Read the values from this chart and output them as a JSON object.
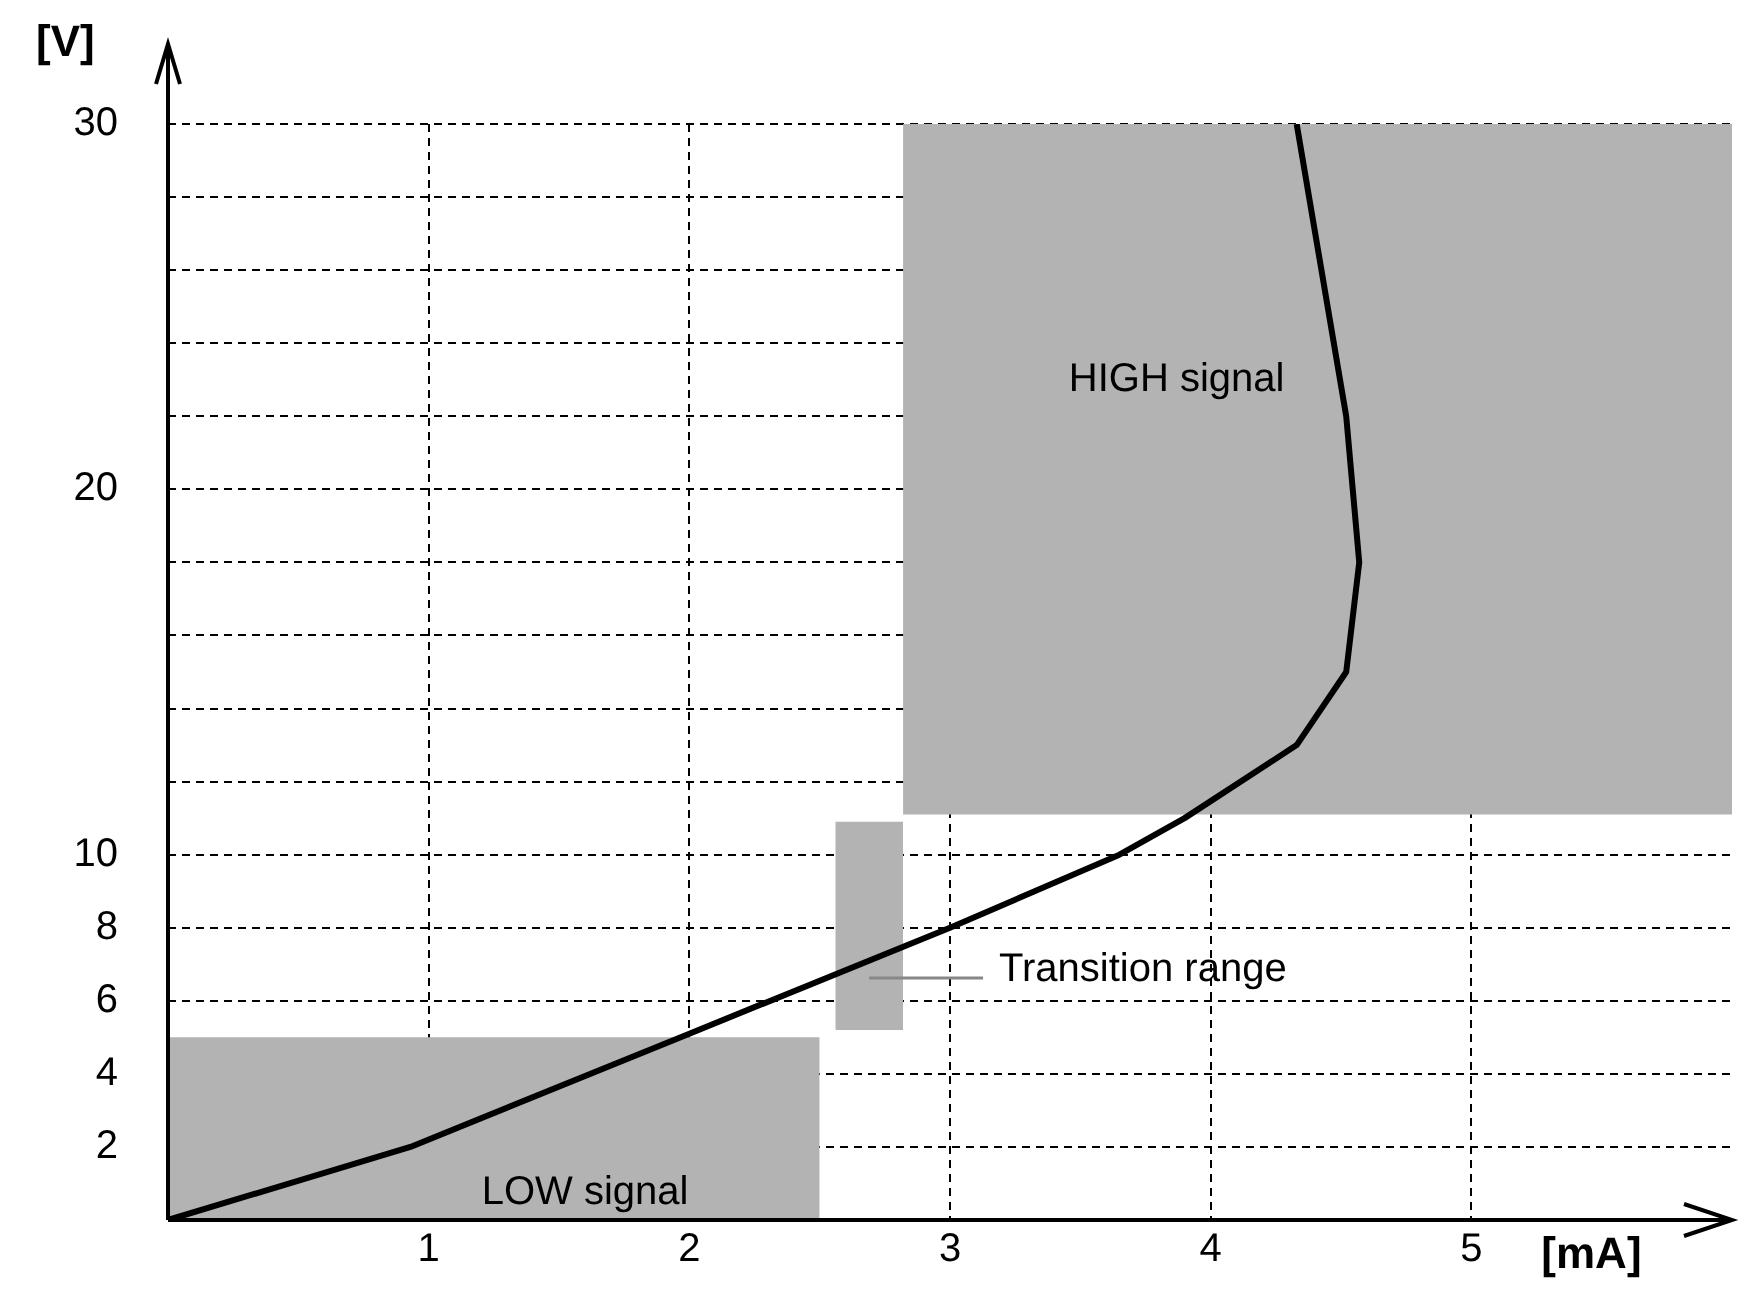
{
  "chart_data": {
    "type": "line",
    "xlabel": "[mA]",
    "ylabel": "[V]",
    "xlim": [
      0,
      6
    ],
    "ylim": [
      0,
      30
    ],
    "xticks": [
      1,
      2,
      3,
      4,
      5
    ],
    "yticks": [
      2,
      4,
      6,
      8,
      10,
      {
        "value": 12,
        "label": null
      },
      {
        "value": 14,
        "label": null
      },
      {
        "value": 16,
        "label": null
      },
      {
        "value": 18,
        "label": null
      },
      20,
      {
        "value": 22,
        "label": null
      },
      {
        "value": 24,
        "label": null
      },
      {
        "value": 26,
        "label": null
      },
      {
        "value": 28,
        "label": null
      },
      30
    ],
    "grid": true,
    "line_style": "solid",
    "marker": "none",
    "series": [
      {
        "type": "line",
        "color": "#b3b3b3",
        "x": [
          0,
          2.5
        ],
        "values": [
          null,
          null
        ],
        "lower": [
          0,
          0
        ],
        "upper": [
          5,
          5
        ]
      },
      {
        "type": "line",
        "color": "#b3b3b3",
        "x": [
          2.56,
          2.82
        ],
        "values": [
          null,
          null
        ],
        "lower": [
          5.2,
          5.2
        ],
        "upper": [
          10.9,
          10.9
        ]
      },
      {
        "type": "line",
        "color": "#b3b3b3",
        "x": [
          2.82,
          6
        ],
        "values": [
          null,
          null
        ],
        "lower": [
          11.1,
          11.1
        ],
        "upper": [
          30,
          30
        ]
      },
      {
        "type": "line",
        "color": "#000000",
        "x": [
          0,
          0.93,
          2,
          3,
          3.65,
          3.9,
          4.33,
          4.52,
          4.57,
          4.52,
          4.33
        ],
        "values": [
          0,
          2,
          5.1,
          8,
          10,
          11,
          13,
          15,
          18,
          22,
          30
        ]
      }
    ],
    "annotations": [
      "LOW signal",
      "Transition range",
      "HIGH signal"
    ]
  }
}
